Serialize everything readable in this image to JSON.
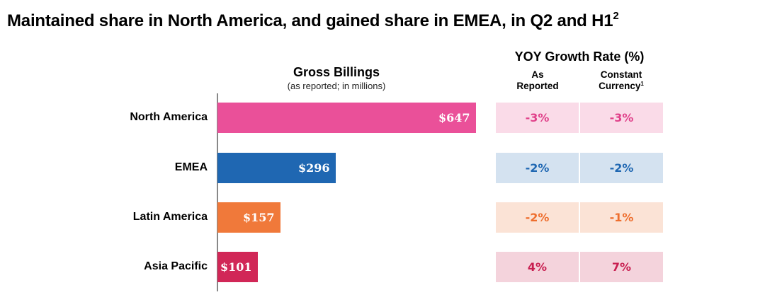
{
  "title": {
    "text": "Maintained share in North America, and gained share in EMEA, in Q2 and H1",
    "sup": "2"
  },
  "chart_data": {
    "type": "bar",
    "orientation": "horizontal",
    "title": "Gross Billings",
    "subtitle": "(as reported; in millions)",
    "categories": [
      "North America",
      "EMEA",
      "Latin America",
      "Asia Pacific"
    ],
    "values": [
      647,
      296,
      157,
      101
    ],
    "value_labels": [
      "$647",
      "$296",
      "$157",
      "$101"
    ],
    "bar_colors": [
      "#ea5099",
      "#1f67b2",
      "#f0793a",
      "#d12757"
    ],
    "xlim": [
      0,
      647
    ],
    "yoy": {
      "title": "YOY Growth Rate (%)",
      "columns": [
        {
          "line1": "As",
          "line2": "Reported",
          "sup": ""
        },
        {
          "line1": "Constant",
          "line2": "Currency",
          "sup": "1"
        }
      ],
      "rows": [
        {
          "as_reported": "-3%",
          "constant_currency": "-3%",
          "text_color": "#e0418a",
          "cell_bg": "#fadbe8"
        },
        {
          "as_reported": "-2%",
          "constant_currency": "-2%",
          "text_color": "#1f67b2",
          "cell_bg": "#d4e2f0"
        },
        {
          "as_reported": "-2%",
          "constant_currency": "-1%",
          "text_color": "#ee6e2e",
          "cell_bg": "#fbe3d6"
        },
        {
          "as_reported": "4%",
          "constant_currency": "7%",
          "text_color": "#c81e50",
          "cell_bg": "#f4d3dc"
        }
      ]
    }
  }
}
